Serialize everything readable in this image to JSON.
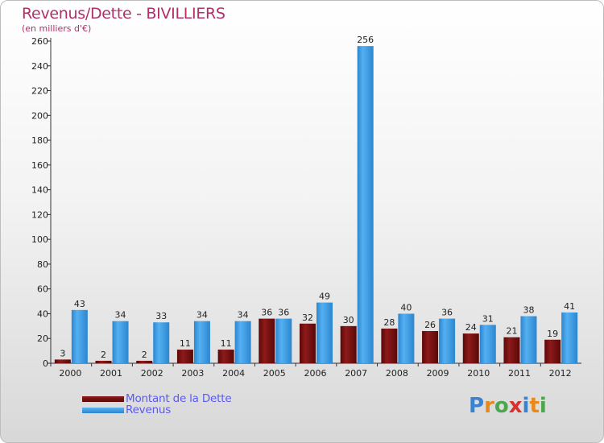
{
  "title": "Revenus/Dette - BIVILLIERS",
  "subtitle": "(en milliers d'€)",
  "logo": {
    "text": "Proxiti",
    "colors": [
      "#3a83d0",
      "#e8891c",
      "#4aa84a",
      "#d93030",
      "#3a83d0",
      "#e8891c",
      "#4aa84a"
    ]
  },
  "colors": {
    "dette": "#7a1010",
    "revenus": "#3f9ee6"
  },
  "chart_data": {
    "type": "bar",
    "title": "Revenus/Dette - BIVILLIERS",
    "ylabel": "(en milliers d'€)",
    "xlabel": "",
    "ylim": [
      0,
      260
    ],
    "yticks": [
      0,
      20,
      40,
      60,
      80,
      100,
      120,
      140,
      160,
      180,
      200,
      220,
      240,
      260
    ],
    "grid": false,
    "legend_position": "bottom-left",
    "categories": [
      "2000",
      "2001",
      "2002",
      "2003",
      "2004",
      "2005",
      "2006",
      "2007",
      "2008",
      "2009",
      "2010",
      "2011",
      "2012"
    ],
    "series": [
      {
        "name": "Montant de la Dette",
        "values": [
          3,
          2,
          2,
          11,
          11,
          36,
          32,
          30,
          28,
          26,
          24,
          21,
          19
        ]
      },
      {
        "name": "Revenus",
        "values": [
          43,
          34,
          33,
          34,
          34,
          36,
          49,
          256,
          40,
          36,
          31,
          38,
          41
        ]
      }
    ]
  }
}
